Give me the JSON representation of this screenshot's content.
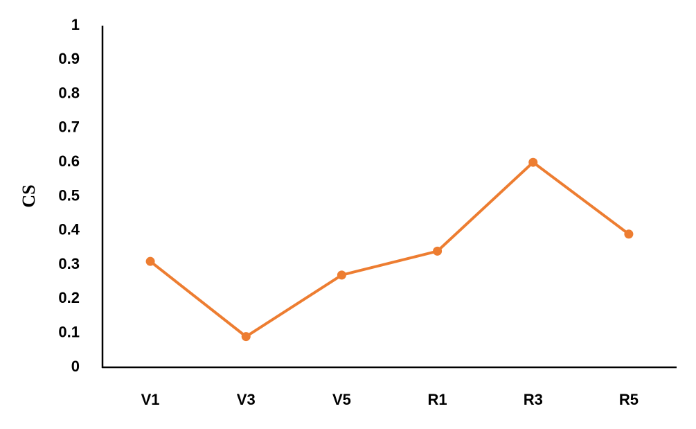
{
  "chart_data": {
    "type": "line",
    "y_label": "CS",
    "categories": [
      "V1",
      "V3",
      "V5",
      "R1",
      "R3",
      "R5"
    ],
    "values": [
      0.31,
      0.09,
      0.27,
      0.34,
      0.6,
      0.39
    ],
    "color": "#ED7D31",
    "ylim": [
      0,
      1
    ],
    "yticks": [
      0,
      0.1,
      0.2,
      0.3,
      0.4,
      0.5,
      0.6,
      0.7,
      0.8,
      0.9,
      1
    ],
    "grid": false
  }
}
